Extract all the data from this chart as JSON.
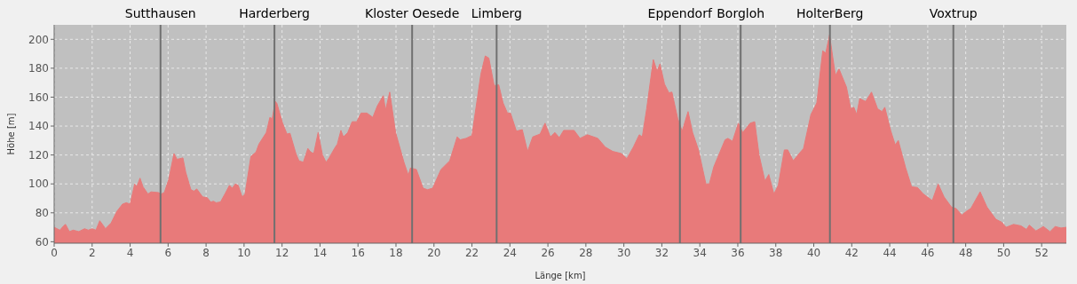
{
  "chart_data": {
    "type": "area",
    "xlabel": "Länge [km]",
    "ylabel": "Höhe [m]",
    "xlim": [
      0,
      53.3
    ],
    "xticks": [
      0,
      2,
      4,
      6,
      8,
      10,
      12,
      14,
      16,
      18,
      20,
      22,
      24,
      26,
      28,
      30,
      32,
      34,
      36,
      38,
      40,
      42,
      44,
      46,
      48,
      50,
      52
    ],
    "ylim": [
      59,
      210
    ],
    "yticks": [
      60,
      80,
      100,
      120,
      140,
      160,
      180,
      200
    ],
    "grid": true,
    "series": [
      {
        "color": "#e87a7a",
        "x": [
          0,
          0.3,
          0.5,
          0.6,
          0.8,
          1.0,
          1.3,
          1.6,
          1.8,
          2.0,
          2.2,
          2.4,
          2.6,
          2.7,
          3.0,
          3.3,
          3.6,
          3.8,
          4.0,
          4.24,
          4.35,
          4.52,
          4.68,
          4.94,
          5.1,
          5.49,
          5.64,
          5.8,
          6.03,
          6.31,
          6.47,
          6.78,
          6.93,
          7.2,
          7.36,
          7.51,
          7.82,
          8.06,
          8.24,
          8.4,
          8.52,
          8.76,
          8.99,
          9.23,
          9.38,
          9.54,
          9.69,
          9.9,
          10.05,
          10.36,
          10.63,
          10.78,
          11.17,
          11.36,
          11.48,
          11.64,
          11.72,
          12.03,
          12.26,
          12.42,
          12.73,
          12.89,
          13.12,
          13.36,
          13.51,
          13.67,
          13.9,
          14.13,
          14.32,
          14.48,
          14.76,
          14.91,
          15.1,
          15.23,
          15.46,
          15.69,
          15.93,
          16.16,
          16.47,
          16.78,
          17.02,
          17.33,
          17.45,
          17.67,
          17.98,
          18.42,
          18.65,
          18.76,
          19.07,
          19.43,
          19.66,
          19.93,
          20.37,
          20.83,
          21.22,
          21.38,
          21.69,
          22.0,
          22.47,
          22.7,
          22.89,
          23.17,
          23.41,
          23.64,
          23.87,
          24.03,
          24.34,
          24.65,
          24.93,
          25.2,
          25.59,
          25.85,
          26.13,
          26.37,
          26.6,
          26.83,
          27.38,
          27.69,
          28.08,
          28.63,
          29.02,
          29.41,
          29.87,
          30.16,
          30.5,
          30.81,
          30.97,
          31.2,
          31.55,
          31.75,
          31.9,
          32.14,
          32.37,
          32.53,
          32.84,
          33.07,
          33.38,
          33.62,
          33.93,
          34.32,
          34.5,
          34.74,
          35.33,
          35.48,
          35.72,
          36.03,
          36.26,
          36.65,
          36.89,
          37.12,
          37.43,
          37.63,
          37.9,
          38.13,
          38.45,
          38.63,
          38.92,
          39.23,
          39.46,
          39.85,
          40.16,
          40.47,
          40.63,
          40.83,
          41.14,
          41.33,
          41.72,
          41.95,
          42.11,
          42.26,
          42.42,
          42.73,
          43.04,
          43.36,
          43.59,
          43.74,
          44.06,
          44.29,
          44.45,
          44.84,
          45.15,
          45.46,
          45.77,
          46.24,
          46.55,
          46.86,
          47.25,
          47.49,
          47.8,
          48.03,
          48.27,
          48.76,
          49.12,
          49.59,
          49.9,
          50.13,
          50.52,
          50.91,
          51.2,
          51.35,
          51.7,
          52.09,
          52.44,
          52.71,
          53.02,
          53.3
        ],
        "values": [
          70,
          68,
          71,
          72,
          67,
          68,
          67,
          69,
          68,
          69,
          68,
          74.5,
          71,
          69,
          73,
          81,
          86,
          87,
          86,
          100,
          98,
          104,
          98,
          93,
          94.5,
          94,
          93,
          94,
          103,
          121,
          117,
          118,
          108,
          96,
          95,
          96.5,
          91,
          90.5,
          87.5,
          88,
          87,
          87.5,
          93,
          99,
          97,
          100,
          99,
          91,
          93,
          119,
          122,
          127.5,
          135.5,
          146,
          145,
          157,
          156,
          142,
          134.5,
          135,
          121,
          116,
          115,
          124.5,
          122,
          121,
          135.5,
          120,
          115,
          118,
          124.5,
          127.5,
          137,
          132.5,
          135.5,
          143,
          143,
          149,
          149,
          146,
          154,
          161,
          151,
          163.5,
          135.5,
          115,
          106,
          111,
          110,
          97,
          96,
          97,
          110,
          116,
          132.5,
          130.5,
          131.5,
          133.5,
          176,
          188.5,
          187,
          168,
          168.5,
          156,
          149,
          149,
          136.5,
          137.5,
          122.5,
          132.5,
          134.5,
          142,
          132.5,
          135.5,
          132,
          137,
          137,
          131.5,
          134,
          131.5,
          125.5,
          122.5,
          121,
          117.5,
          125.5,
          134,
          132.5,
          152,
          186,
          178,
          183,
          169,
          163,
          163.5,
          145,
          136.5,
          150,
          135.5,
          123.5,
          100,
          100,
          112,
          130.5,
          131.5,
          129.5,
          142,
          135.5,
          142,
          143,
          120,
          102,
          106.5,
          93,
          99,
          123.5,
          123.5,
          116,
          121,
          124.5,
          148,
          156,
          192,
          190.5,
          203,
          175,
          179.5,
          167,
          152,
          153,
          148,
          159,
          157,
          163.5,
          152,
          150,
          153,
          136.5,
          127,
          130,
          111,
          98,
          97.5,
          93,
          88.5,
          100,
          91,
          84,
          83,
          78.5,
          81,
          83,
          94.5,
          84,
          75.5,
          73.5,
          70,
          72,
          71,
          68.5,
          71.5,
          67.5,
          70.5,
          67,
          70.5,
          69.5,
          70
        ]
      }
    ],
    "ref_lines": [
      {
        "axis": "x",
        "value": 5.6,
        "label": "Sutthausen",
        "color": "#707070"
      },
      {
        "axis": "x",
        "value": 11.6,
        "label": "Harderberg",
        "color": "#707070"
      },
      {
        "axis": "x",
        "value": 18.85,
        "label": "Kloster Oesede",
        "color": "#707070"
      },
      {
        "axis": "x",
        "value": 23.3,
        "label": "Limberg",
        "color": "#707070"
      },
      {
        "axis": "x",
        "value": 32.95,
        "label": "Eppendorf",
        "color": "#707070"
      },
      {
        "axis": "x",
        "value": 36.15,
        "label": "Borgloh",
        "color": "#707070"
      },
      {
        "axis": "x",
        "value": 40.85,
        "label": "HolterBerg",
        "color": "#707070"
      },
      {
        "axis": "x",
        "value": 47.35,
        "label": "Voxtrup",
        "color": "#707070"
      }
    ]
  }
}
